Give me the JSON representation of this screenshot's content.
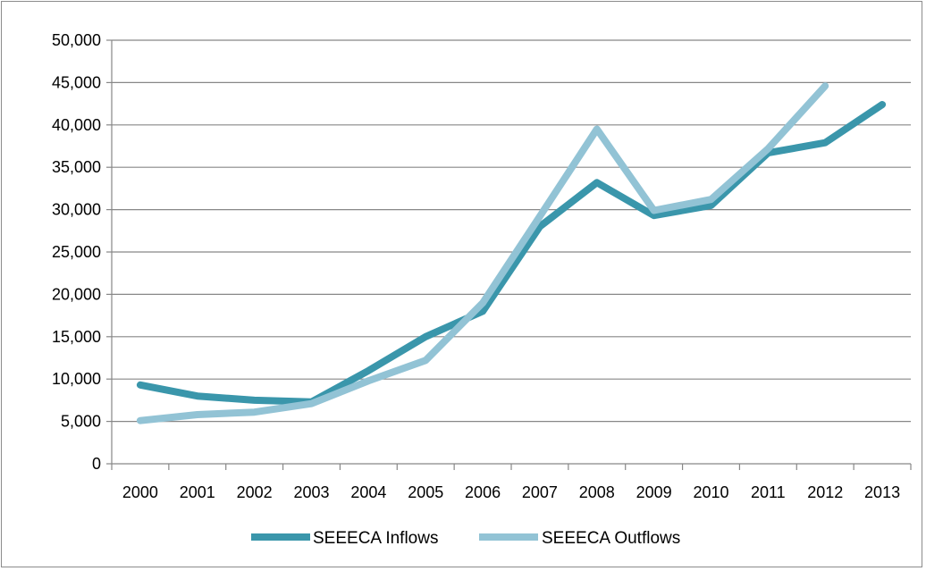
{
  "chart_data": {
    "type": "line",
    "title": "",
    "xlabel": "",
    "ylabel": "",
    "categories": [
      "2000",
      "2001",
      "2002",
      "2003",
      "2004",
      "2005",
      "2006",
      "2007",
      "2008",
      "2009",
      "2010",
      "2011",
      "2012",
      "2013"
    ],
    "ylim": [
      0,
      50000
    ],
    "yticks": [
      0,
      5000,
      10000,
      15000,
      20000,
      25000,
      30000,
      35000,
      40000,
      45000,
      50000
    ],
    "ytick_labels": [
      "0",
      "5,000",
      "10,000",
      "15,000",
      "20,000",
      "25,000",
      "30,000",
      "35,000",
      "40,000",
      "45,000",
      "50,000"
    ],
    "grid": "horizontal",
    "legend_position": "bottom",
    "series": [
      {
        "name": "SEEECA Inflows",
        "color": "#3a96ab",
        "values": [
          9300,
          8000,
          7500,
          7300,
          11000,
          15000,
          18000,
          28000,
          33200,
          29300,
          30500,
          36700,
          37900,
          42400
        ]
      },
      {
        "name": "SEEECA Outflows",
        "color": "#92c3d5",
        "values": [
          5100,
          5800,
          6100,
          7100,
          9800,
          12200,
          19000,
          29200,
          39500,
          29900,
          31200,
          37200,
          44600,
          null
        ]
      }
    ]
  }
}
